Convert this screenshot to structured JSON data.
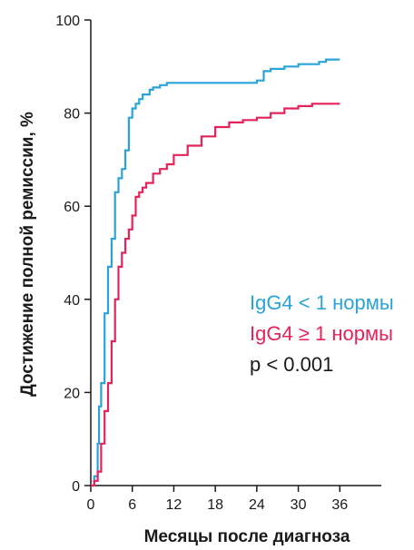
{
  "chart_data": {
    "type": "line",
    "step": true,
    "xlabel": "Месяцы после диагноза",
    "ylabel": "Достижение полной ремиссии, %",
    "xlim": [
      0,
      42
    ],
    "ylim": [
      0,
      100
    ],
    "xticks": [
      0,
      6,
      12,
      18,
      24,
      30,
      36
    ],
    "yticks": [
      0,
      20,
      40,
      60,
      80,
      100
    ],
    "legend_position": "right",
    "series": [
      {
        "name": "IgG4 < 1 нормы",
        "color": "#2aa3d8",
        "x": [
          0,
          0.5,
          1,
          1.2,
          1.5,
          2,
          2.5,
          3,
          3.5,
          4,
          4.5,
          5,
          5.5,
          6,
          6.5,
          7,
          7.5,
          8,
          8.5,
          9,
          10,
          11,
          12,
          14,
          18,
          24,
          25,
          26,
          28,
          30,
          33,
          34,
          36
        ],
        "y": [
          0,
          2,
          9,
          17,
          22,
          37,
          47,
          53,
          63,
          66,
          68,
          72,
          79,
          81,
          82,
          83,
          84,
          84,
          85,
          85.5,
          86,
          86.5,
          86.5,
          86.5,
          86.5,
          87,
          89,
          89.5,
          90,
          90.5,
          91,
          91.5,
          91.5
        ]
      },
      {
        "name": "IgG4 ≥ 1 нормы",
        "color": "#e5235a",
        "x": [
          0,
          0.5,
          1,
          1.5,
          2,
          2.5,
          3,
          3.5,
          4,
          4.5,
          5,
          5.5,
          6,
          6.5,
          7,
          7.5,
          8,
          9,
          10,
          11,
          12,
          14,
          16,
          18,
          20,
          22,
          24,
          26,
          28,
          30,
          32,
          34,
          36
        ],
        "y": [
          0,
          1,
          3,
          9,
          16,
          22,
          31,
          40,
          47,
          50,
          53,
          55,
          58,
          62,
          63,
          64,
          65,
          67,
          68,
          69,
          71,
          73,
          75,
          77,
          78,
          78.5,
          79,
          80,
          81,
          81.5,
          82,
          82,
          82
        ]
      }
    ],
    "annotations": [
      {
        "text": "p < 0.001",
        "color": "#1a1a1a"
      }
    ]
  }
}
